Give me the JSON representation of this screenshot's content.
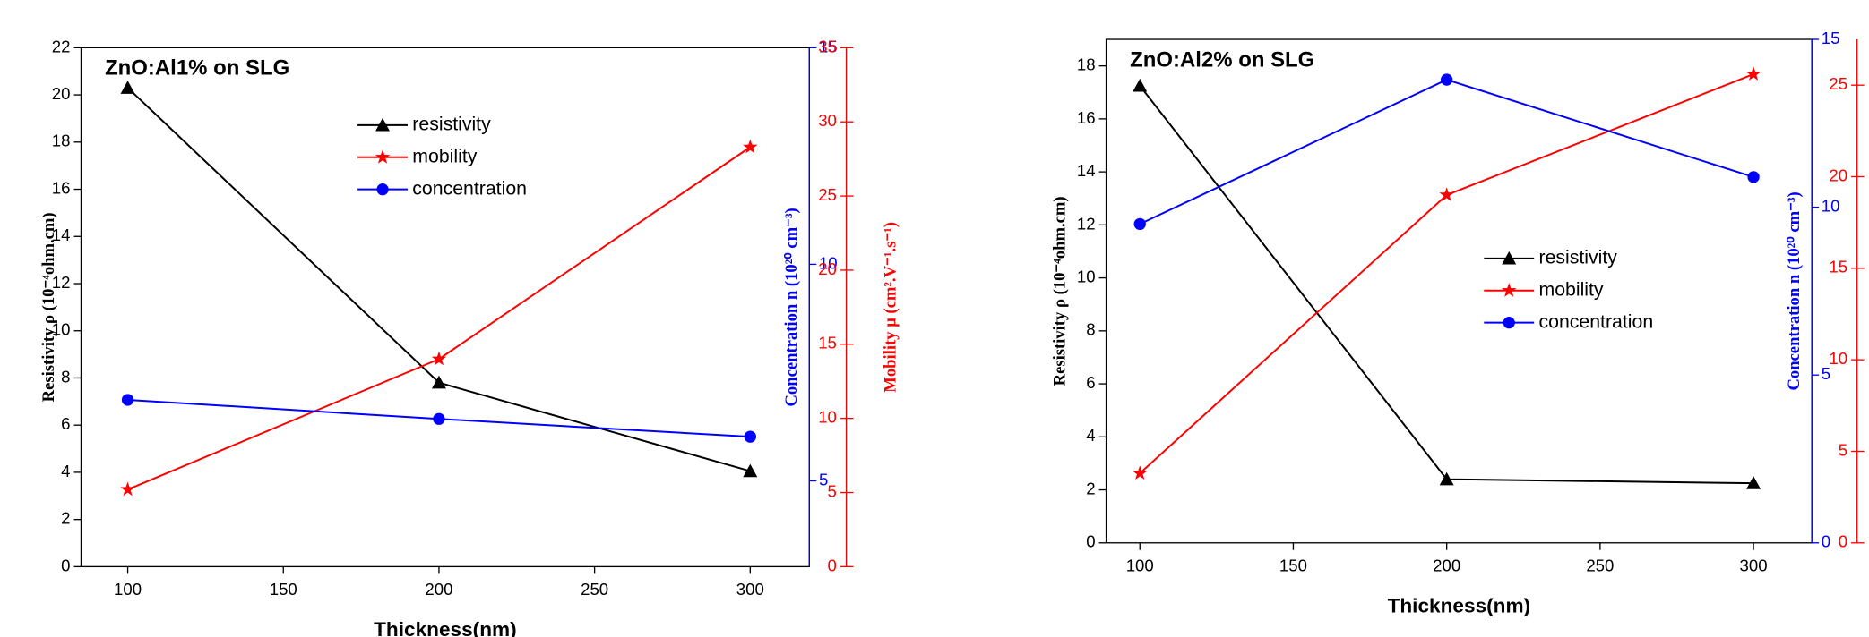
{
  "chart_data": [
    {
      "type": "line",
      "title": "ZnO:Al1% on SLG",
      "x_label": "Thickness(nm)",
      "y_label": "Resistivity ρ (10⁻⁴ohm.cm)",
      "y2_label": "Concentration n (10²⁰ cm⁻³)",
      "y3_label": "Mobility μ (cm².V⁻¹.s⁻¹)",
      "x": [
        100,
        200,
        300
      ],
      "xlim": [
        85,
        319
      ],
      "xticks": [
        100,
        150,
        200,
        250,
        300
      ],
      "ylim": [
        0,
        22
      ],
      "yticks": [
        0,
        2,
        4,
        6,
        8,
        10,
        12,
        14,
        16,
        18,
        20,
        22
      ],
      "y2lim": [
        3.02,
        15
      ],
      "y2ticks": [
        5,
        10,
        15
      ],
      "y3lim": [
        0,
        35
      ],
      "y3ticks": [
        0,
        5,
        10,
        15,
        20,
        25,
        30,
        35
      ],
      "series": [
        {
          "name": "resistivity",
          "color": "#000000",
          "marker": "triangle",
          "axis": "y",
          "values": [
            20.3,
            7.8,
            4.05
          ]
        },
        {
          "name": "mobility",
          "color": "#ff0000",
          "marker": "star",
          "axis": "y3",
          "values": [
            5.2,
            14.0,
            28.3
          ]
        },
        {
          "name": "concentration",
          "color": "#0000ff",
          "marker": "circle",
          "axis": "y2",
          "values": [
            6.87,
            6.43,
            6.02
          ]
        }
      ]
    },
    {
      "type": "line",
      "title": "ZnO:Al2% on SLG",
      "x_label": "Thickness(nm)",
      "y_label": "Resistivity ρ (10⁻⁴ohm.cm)",
      "y2_label": "Concentration n (10²⁰ cm⁻³)",
      "x": [
        100,
        200,
        300
      ],
      "xlim": [
        89,
        319
      ],
      "xticks": [
        100,
        150,
        200,
        250,
        300
      ],
      "ylim": [
        0,
        19
      ],
      "yticks": [
        0,
        2,
        4,
        6,
        8,
        10,
        12,
        14,
        16,
        18
      ],
      "y2lim": [
        0,
        15
      ],
      "y2ticks": [
        0,
        5,
        10,
        15
      ],
      "y3lim": [
        0,
        27.5
      ],
      "y3ticks": [
        0,
        5,
        10,
        15,
        20,
        25
      ],
      "series": [
        {
          "name": "resistivity",
          "color": "#000000",
          "marker": "triangle",
          "axis": "y",
          "values": [
            17.25,
            2.4,
            2.25
          ]
        },
        {
          "name": "mobility",
          "color": "#ff0000",
          "marker": "star",
          "axis": "y3",
          "values": [
            3.8,
            19.0,
            25.6
          ]
        },
        {
          "name": "concentration",
          "color": "#0000ff",
          "marker": "circle",
          "axis": "y2",
          "values": [
            9.5,
            13.8,
            10.9
          ]
        }
      ]
    }
  ]
}
